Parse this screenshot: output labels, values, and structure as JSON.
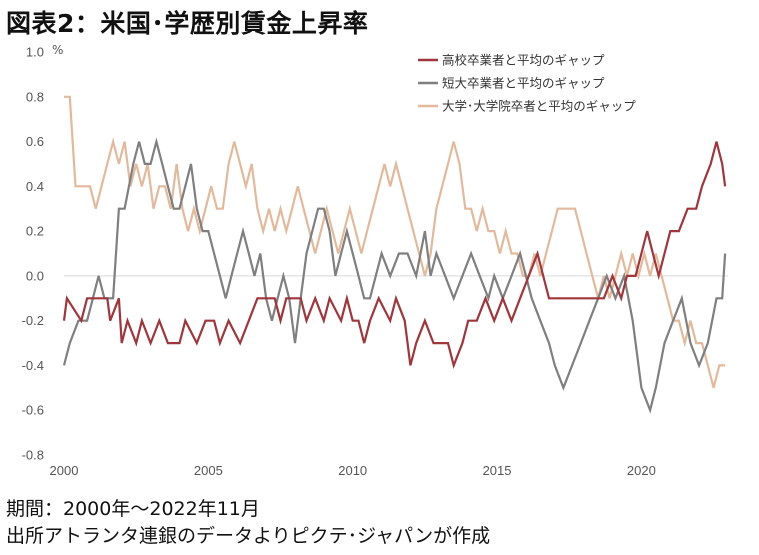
{
  "title": "図表2：米国･学歴別賃金上昇率",
  "unit_label": "%",
  "footer": {
    "period": "期間：2000年～2022年11月",
    "source": "出所アトランタ連銀のデータよりピクテ･ジャパンが作成"
  },
  "chart_data": {
    "type": "line",
    "title": "図表2：米国･学歴別賃金上昇率",
    "ylabel": "%",
    "xlabel": "",
    "ylim": [
      -0.8,
      1.0
    ],
    "yticks": [
      "1.0",
      "0.8",
      "0.6",
      "0.4",
      "0.2",
      "0.0",
      "-0.2",
      "-0.4",
      "-0.6",
      "-0.8"
    ],
    "xticks": [
      "2000",
      "2005",
      "2010",
      "2015",
      "2020"
    ],
    "xlim": [
      2000,
      2023
    ],
    "grid": false,
    "zero_line": true,
    "legend_position": "top-right",
    "series": [
      {
        "name": "高校卒業者と平均のギャップ",
        "color": "#a0353b",
        "points": [
          [
            2000.0,
            -0.2
          ],
          [
            2000.1,
            -0.1
          ],
          [
            2000.6,
            -0.2
          ],
          [
            2000.8,
            -0.1
          ],
          [
            2001.5,
            -0.1
          ],
          [
            2001.6,
            -0.2
          ],
          [
            2001.9,
            -0.1
          ],
          [
            2002.0,
            -0.3
          ],
          [
            2002.2,
            -0.2
          ],
          [
            2002.5,
            -0.3
          ],
          [
            2002.7,
            -0.2
          ],
          [
            2003.0,
            -0.3
          ],
          [
            2003.3,
            -0.2
          ],
          [
            2003.6,
            -0.3
          ],
          [
            2004.0,
            -0.3
          ],
          [
            2004.2,
            -0.2
          ],
          [
            2004.6,
            -0.3
          ],
          [
            2004.9,
            -0.2
          ],
          [
            2005.2,
            -0.2
          ],
          [
            2005.4,
            -0.3
          ],
          [
            2005.7,
            -0.2
          ],
          [
            2006.1,
            -0.3
          ],
          [
            2006.4,
            -0.2
          ],
          [
            2006.7,
            -0.1
          ],
          [
            2007.3,
            -0.1
          ],
          [
            2007.5,
            -0.2
          ],
          [
            2007.7,
            -0.1
          ],
          [
            2008.2,
            -0.1
          ],
          [
            2008.4,
            -0.2
          ],
          [
            2008.7,
            -0.1
          ],
          [
            2009.0,
            -0.2
          ],
          [
            2009.2,
            -0.1
          ],
          [
            2009.6,
            -0.2
          ],
          [
            2009.8,
            -0.1
          ],
          [
            2010.0,
            -0.2
          ],
          [
            2010.2,
            -0.2
          ],
          [
            2010.4,
            -0.3
          ],
          [
            2010.6,
            -0.2
          ],
          [
            2010.9,
            -0.1
          ],
          [
            2011.3,
            -0.2
          ],
          [
            2011.5,
            -0.1
          ],
          [
            2011.8,
            -0.2
          ],
          [
            2012.0,
            -0.4
          ],
          [
            2012.2,
            -0.3
          ],
          [
            2012.5,
            -0.2
          ],
          [
            2012.8,
            -0.3
          ],
          [
            2013.0,
            -0.3
          ],
          [
            2013.3,
            -0.3
          ],
          [
            2013.5,
            -0.4
          ],
          [
            2013.8,
            -0.3
          ],
          [
            2014.0,
            -0.2
          ],
          [
            2014.3,
            -0.2
          ],
          [
            2014.6,
            -0.1
          ],
          [
            2014.9,
            -0.2
          ],
          [
            2015.2,
            -0.1
          ],
          [
            2015.5,
            -0.2
          ],
          [
            2015.8,
            -0.1
          ],
          [
            2016.1,
            0.0
          ],
          [
            2016.4,
            0.1
          ],
          [
            2016.6,
            0.0
          ],
          [
            2016.8,
            -0.1
          ],
          [
            2017.0,
            -0.1
          ],
          [
            2017.3,
            -0.1
          ],
          [
            2017.6,
            -0.1
          ],
          [
            2018.0,
            -0.1
          ],
          [
            2018.4,
            -0.1
          ],
          [
            2018.7,
            -0.1
          ],
          [
            2019.0,
            0.0
          ],
          [
            2019.3,
            -0.1
          ],
          [
            2019.5,
            0.0
          ],
          [
            2019.8,
            0.0
          ],
          [
            2020.0,
            0.1
          ],
          [
            2020.2,
            0.2
          ],
          [
            2020.4,
            0.1
          ],
          [
            2020.6,
            0.0
          ],
          [
            2020.8,
            0.1
          ],
          [
            2021.0,
            0.2
          ],
          [
            2021.3,
            0.2
          ],
          [
            2021.6,
            0.3
          ],
          [
            2021.9,
            0.3
          ],
          [
            2022.1,
            0.4
          ],
          [
            2022.4,
            0.5
          ],
          [
            2022.6,
            0.6
          ],
          [
            2022.8,
            0.5
          ],
          [
            2022.9,
            0.4
          ]
        ]
      },
      {
        "name": "短大卒業者と平均のギャップ",
        "color": "#7f7f7f",
        "points": [
          [
            2000.0,
            -0.4
          ],
          [
            2000.2,
            -0.3
          ],
          [
            2000.5,
            -0.2
          ],
          [
            2000.8,
            -0.2
          ],
          [
            2001.0,
            -0.1
          ],
          [
            2001.2,
            0.0
          ],
          [
            2001.4,
            -0.1
          ],
          [
            2001.7,
            -0.1
          ],
          [
            2001.9,
            0.3
          ],
          [
            2002.1,
            0.3
          ],
          [
            2002.4,
            0.5
          ],
          [
            2002.6,
            0.6
          ],
          [
            2002.8,
            0.5
          ],
          [
            2003.0,
            0.5
          ],
          [
            2003.2,
            0.6
          ],
          [
            2003.4,
            0.5
          ],
          [
            2003.6,
            0.4
          ],
          [
            2003.8,
            0.3
          ],
          [
            2004.0,
            0.3
          ],
          [
            2004.2,
            0.4
          ],
          [
            2004.4,
            0.5
          ],
          [
            2004.6,
            0.3
          ],
          [
            2004.8,
            0.2
          ],
          [
            2005.0,
            0.2
          ],
          [
            2005.2,
            0.1
          ],
          [
            2005.4,
            0.0
          ],
          [
            2005.6,
            -0.1
          ],
          [
            2005.8,
            0.0
          ],
          [
            2006.0,
            0.1
          ],
          [
            2006.2,
            0.2
          ],
          [
            2006.4,
            0.1
          ],
          [
            2006.6,
            0.0
          ],
          [
            2006.8,
            0.1
          ],
          [
            2007.0,
            -0.1
          ],
          [
            2007.2,
            -0.2
          ],
          [
            2007.4,
            -0.1
          ],
          [
            2007.6,
            0.0
          ],
          [
            2007.8,
            -0.1
          ],
          [
            2008.0,
            -0.3
          ],
          [
            2008.2,
            -0.1
          ],
          [
            2008.4,
            0.1
          ],
          [
            2008.6,
            0.2
          ],
          [
            2008.8,
            0.3
          ],
          [
            2009.0,
            0.3
          ],
          [
            2009.2,
            0.2
          ],
          [
            2009.4,
            0.0
          ],
          [
            2009.6,
            0.1
          ],
          [
            2009.8,
            0.2
          ],
          [
            2010.0,
            0.1
          ],
          [
            2010.2,
            0.0
          ],
          [
            2010.4,
            -0.1
          ],
          [
            2010.6,
            -0.1
          ],
          [
            2010.8,
            0.0
          ],
          [
            2011.0,
            0.1
          ],
          [
            2011.3,
            0.0
          ],
          [
            2011.6,
            0.1
          ],
          [
            2011.9,
            0.1
          ],
          [
            2012.2,
            0.0
          ],
          [
            2012.5,
            0.2
          ],
          [
            2012.7,
            0.0
          ],
          [
            2012.9,
            0.1
          ],
          [
            2013.2,
            0.0
          ],
          [
            2013.5,
            -0.1
          ],
          [
            2013.8,
            0.0
          ],
          [
            2014.1,
            0.1
          ],
          [
            2014.4,
            0.0
          ],
          [
            2014.7,
            -0.1
          ],
          [
            2014.9,
            0.0
          ],
          [
            2015.2,
            -0.1
          ],
          [
            2015.5,
            0.0
          ],
          [
            2015.8,
            0.1
          ],
          [
            2016.0,
            0.0
          ],
          [
            2016.2,
            -0.1
          ],
          [
            2016.5,
            -0.2
          ],
          [
            2016.8,
            -0.3
          ],
          [
            2017.0,
            -0.4
          ],
          [
            2017.3,
            -0.5
          ],
          [
            2017.6,
            -0.4
          ],
          [
            2017.9,
            -0.3
          ],
          [
            2018.2,
            -0.2
          ],
          [
            2018.5,
            -0.1
          ],
          [
            2018.8,
            0.0
          ],
          [
            2019.1,
            -0.1
          ],
          [
            2019.4,
            0.0
          ],
          [
            2019.7,
            -0.2
          ],
          [
            2020.0,
            -0.5
          ],
          [
            2020.3,
            -0.6
          ],
          [
            2020.5,
            -0.5
          ],
          [
            2020.8,
            -0.3
          ],
          [
            2021.1,
            -0.2
          ],
          [
            2021.4,
            -0.1
          ],
          [
            2021.7,
            -0.3
          ],
          [
            2022.0,
            -0.4
          ],
          [
            2022.3,
            -0.3
          ],
          [
            2022.6,
            -0.1
          ],
          [
            2022.8,
            -0.1
          ],
          [
            2022.9,
            0.1
          ]
        ]
      },
      {
        "name": "大学･大学院卒者と平均のギャップ",
        "color": "#e3b99b",
        "points": [
          [
            2000.0,
            0.8
          ],
          [
            2000.2,
            0.8
          ],
          [
            2000.4,
            0.4
          ],
          [
            2000.7,
            0.4
          ],
          [
            2000.9,
            0.4
          ],
          [
            2001.1,
            0.3
          ],
          [
            2001.3,
            0.4
          ],
          [
            2001.5,
            0.5
          ],
          [
            2001.7,
            0.6
          ],
          [
            2001.9,
            0.5
          ],
          [
            2002.1,
            0.6
          ],
          [
            2002.3,
            0.4
          ],
          [
            2002.5,
            0.5
          ],
          [
            2002.7,
            0.4
          ],
          [
            2002.9,
            0.5
          ],
          [
            2003.1,
            0.3
          ],
          [
            2003.3,
            0.4
          ],
          [
            2003.5,
            0.4
          ],
          [
            2003.7,
            0.3
          ],
          [
            2003.9,
            0.5
          ],
          [
            2004.1,
            0.3
          ],
          [
            2004.3,
            0.2
          ],
          [
            2004.5,
            0.3
          ],
          [
            2004.7,
            0.2
          ],
          [
            2004.9,
            0.3
          ],
          [
            2005.1,
            0.4
          ],
          [
            2005.3,
            0.3
          ],
          [
            2005.5,
            0.3
          ],
          [
            2005.7,
            0.5
          ],
          [
            2005.9,
            0.6
          ],
          [
            2006.1,
            0.5
          ],
          [
            2006.3,
            0.4
          ],
          [
            2006.5,
            0.5
          ],
          [
            2006.7,
            0.3
          ],
          [
            2006.9,
            0.2
          ],
          [
            2007.1,
            0.3
          ],
          [
            2007.3,
            0.2
          ],
          [
            2007.5,
            0.3
          ],
          [
            2007.7,
            0.2
          ],
          [
            2007.9,
            0.3
          ],
          [
            2008.1,
            0.4
          ],
          [
            2008.3,
            0.3
          ],
          [
            2008.5,
            0.2
          ],
          [
            2008.7,
            0.1
          ],
          [
            2008.9,
            0.2
          ],
          [
            2009.1,
            0.3
          ],
          [
            2009.3,
            0.2
          ],
          [
            2009.5,
            0.1
          ],
          [
            2009.7,
            0.2
          ],
          [
            2009.9,
            0.3
          ],
          [
            2010.1,
            0.2
          ],
          [
            2010.3,
            0.1
          ],
          [
            2010.5,
            0.2
          ],
          [
            2010.7,
            0.3
          ],
          [
            2010.9,
            0.4
          ],
          [
            2011.1,
            0.5
          ],
          [
            2011.3,
            0.4
          ],
          [
            2011.5,
            0.5
          ],
          [
            2011.7,
            0.4
          ],
          [
            2011.9,
            0.3
          ],
          [
            2012.1,
            0.2
          ],
          [
            2012.3,
            0.1
          ],
          [
            2012.5,
            0.0
          ],
          [
            2012.7,
            0.1
          ],
          [
            2012.9,
            0.3
          ],
          [
            2013.1,
            0.4
          ],
          [
            2013.3,
            0.5
          ],
          [
            2013.5,
            0.6
          ],
          [
            2013.7,
            0.5
          ],
          [
            2013.9,
            0.3
          ],
          [
            2014.1,
            0.3
          ],
          [
            2014.3,
            0.2
          ],
          [
            2014.5,
            0.3
          ],
          [
            2014.7,
            0.2
          ],
          [
            2014.9,
            0.2
          ],
          [
            2015.1,
            0.1
          ],
          [
            2015.3,
            0.2
          ],
          [
            2015.5,
            0.1
          ],
          [
            2015.7,
            0.1
          ],
          [
            2015.9,
            0.0
          ],
          [
            2016.1,
            0.0
          ],
          [
            2016.3,
            0.1
          ],
          [
            2016.5,
            0.0
          ],
          [
            2016.7,
            0.1
          ],
          [
            2016.9,
            0.2
          ],
          [
            2017.1,
            0.3
          ],
          [
            2017.3,
            0.3
          ],
          [
            2017.5,
            0.3
          ],
          [
            2017.7,
            0.3
          ],
          [
            2017.9,
            0.2
          ],
          [
            2018.1,
            0.1
          ],
          [
            2018.3,
            0.0
          ],
          [
            2018.5,
            -0.1
          ],
          [
            2018.7,
            0.0
          ],
          [
            2018.9,
            -0.1
          ],
          [
            2019.1,
            0.0
          ],
          [
            2019.3,
            0.1
          ],
          [
            2019.5,
            0.0
          ],
          [
            2019.7,
            0.1
          ],
          [
            2019.9,
            0.0
          ],
          [
            2020.1,
            0.1
          ],
          [
            2020.3,
            0.0
          ],
          [
            2020.5,
            0.1
          ],
          [
            2020.7,
            0.0
          ],
          [
            2020.9,
            -0.1
          ],
          [
            2021.1,
            -0.2
          ],
          [
            2021.3,
            -0.2
          ],
          [
            2021.5,
            -0.3
          ],
          [
            2021.7,
            -0.2
          ],
          [
            2021.9,
            -0.3
          ],
          [
            2022.1,
            -0.3
          ],
          [
            2022.3,
            -0.4
          ],
          [
            2022.5,
            -0.5
          ],
          [
            2022.7,
            -0.4
          ],
          [
            2022.9,
            -0.4
          ]
        ]
      }
    ]
  }
}
